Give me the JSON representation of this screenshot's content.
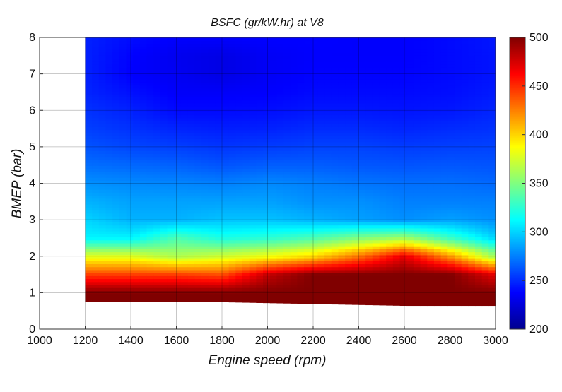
{
  "chart_data": {
    "type": "heatmap",
    "title": "BSFC (gr/kW.hr) at V8",
    "xlabel": "Engine speed (rpm)",
    "ylabel": "BMEP (bar)",
    "xlim": [
      1000,
      3000
    ],
    "ylim": [
      0,
      8
    ],
    "grid": true,
    "x_ticks": [
      "1000",
      "1200",
      "1400",
      "1600",
      "1800",
      "2000",
      "2200",
      "2400",
      "2600",
      "2800",
      "3000"
    ],
    "y_ticks": [
      "0",
      "1",
      "2",
      "3",
      "4",
      "5",
      "6",
      "7",
      "8"
    ],
    "x": [
      1200,
      1400,
      1600,
      1800,
      2000,
      2200,
      2400,
      2600,
      2800,
      3000
    ],
    "y": [
      1,
      1.5,
      2,
      2.5,
      3,
      3.5,
      4,
      4.5,
      5,
      5.5,
      6,
      6.5,
      7,
      7.5,
      8
    ],
    "z": [
      [
        500,
        500,
        500,
        500,
        500,
        500,
        500,
        500,
        500,
        500
      ],
      [
        445,
        445,
        445,
        440,
        480,
        500,
        500,
        500,
        500,
        470
      ],
      [
        380,
        380,
        365,
        375,
        385,
        400,
        430,
        470,
        420,
        360
      ],
      [
        310,
        310,
        335,
        320,
        325,
        335,
        350,
        360,
        330,
        300
      ],
      [
        300,
        290,
        290,
        295,
        295,
        290,
        285,
        280,
        285,
        280
      ],
      [
        290,
        285,
        285,
        285,
        285,
        280,
        280,
        275,
        275,
        275
      ],
      [
        280,
        278,
        277,
        275,
        278,
        275,
        272,
        270,
        270,
        268
      ],
      [
        270,
        268,
        266,
        262,
        265,
        265,
        263,
        262,
        263,
        262
      ],
      [
        262,
        258,
        256,
        253,
        255,
        257,
        257,
        255,
        256,
        257
      ],
      [
        256,
        252,
        248,
        246,
        247,
        250,
        250,
        248,
        250,
        252
      ],
      [
        252,
        247,
        240,
        240,
        241,
        244,
        244,
        243,
        244,
        248
      ],
      [
        248,
        242,
        236,
        236,
        237,
        240,
        240,
        240,
        241,
        245
      ],
      [
        247,
        237,
        234,
        230,
        235,
        238,
        238,
        238,
        240,
        243
      ],
      [
        247,
        238,
        233,
        230,
        235,
        237,
        237,
        237,
        240,
        243
      ],
      [
        247,
        241,
        237,
        237,
        238,
        238,
        237,
        237,
        240,
        244
      ]
    ],
    "lower_boundary": {
      "x": [
        1200,
        1800,
        2600,
        3000
      ],
      "y": [
        0.75,
        0.75,
        0.65,
        0.65
      ]
    },
    "colorbar": {
      "range": [
        200,
        500
      ],
      "ticks": [
        "200",
        "250",
        "300",
        "350",
        "400",
        "450",
        "500"
      ],
      "colormap": "jet"
    }
  }
}
